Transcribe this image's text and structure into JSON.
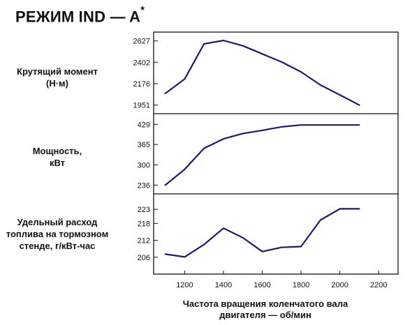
{
  "title_main": "РЕЖИМ IND — A",
  "title_sup": "*",
  "chart_data": {
    "type": "line",
    "x": [
      1100,
      1200,
      1300,
      1400,
      1500,
      1600,
      1700,
      1800,
      1900,
      2000,
      2100
    ],
    "xticks": [
      1200,
      1400,
      1600,
      1800,
      2000,
      2200
    ],
    "xlim": [
      1040,
      2300
    ],
    "xlabel_line1": "Частота вращения коленчатого вала",
    "xlabel_line2": "двигателя — об/мин",
    "line_color": "#1a1a6e",
    "panels": [
      {
        "ylabel_lines": [
          "Крутящий момент",
          "(Н·м)"
        ],
        "yticks": [
          1951,
          2176,
          2402,
          2627
        ],
        "ylim": [
          1860,
          2720
        ],
        "values": [
          2073,
          2225,
          2596,
          2632,
          2575,
          2490,
          2405,
          2300,
          2162,
          2058,
          1951
        ]
      },
      {
        "ylabel_lines": [
          "Мощность,",
          "кВт"
        ],
        "yticks": [
          236,
          300,
          365,
          429
        ],
        "ylim": [
          208,
          463
        ],
        "values": [
          236,
          286,
          353,
          383,
          400,
          410,
          421,
          427,
          427,
          427,
          427
        ]
      },
      {
        "ylabel_lines": [
          "Удельный расход",
          "топлива на тормозном",
          "стенде, г/кВт-час"
        ],
        "yticks": [
          206,
          212,
          218,
          223
        ],
        "ylim": [
          200,
          228.5
        ],
        "values": [
          207.1,
          206.1,
          210.5,
          216.3,
          212.9,
          208.0,
          209.5,
          209.8,
          219.2,
          223.2,
          223.2
        ]
      }
    ]
  }
}
